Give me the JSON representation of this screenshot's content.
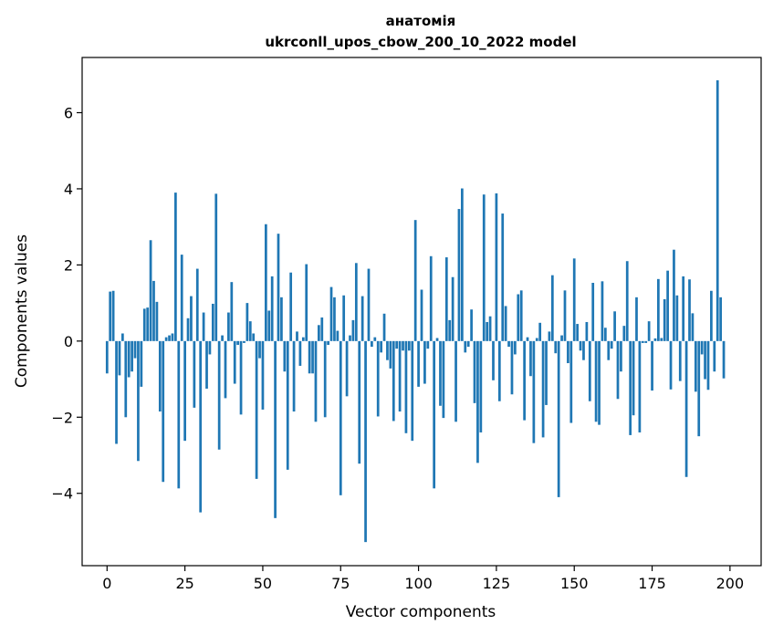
{
  "chart_data": {
    "type": "bar",
    "title_line1": "анатомія",
    "title_line2": "ukrconll_upos_cbow_200_10_2022 model",
    "xlabel": "Vector components",
    "ylabel": "Components values",
    "xlim": [
      -8,
      210
    ],
    "ylim": [
      -5.9,
      7.45
    ],
    "xticks": [
      0,
      25,
      50,
      75,
      100,
      125,
      150,
      175,
      200
    ],
    "yticks": [
      -4,
      -2,
      0,
      2,
      4,
      6
    ],
    "ytick_labels": [
      "−4",
      "−2",
      "0",
      "2",
      "4",
      "6"
    ],
    "bar_color": "#1f77b4",
    "grid": false,
    "values": [
      -0.85,
      1.3,
      1.32,
      -2.7,
      -0.9,
      0.2,
      -2.0,
      -0.95,
      -0.8,
      -0.45,
      -3.15,
      -1.2,
      0.85,
      0.88,
      2.65,
      1.58,
      1.03,
      -1.85,
      -3.7,
      0.1,
      0.15,
      0.2,
      3.9,
      -3.87,
      2.27,
      -2.62,
      0.6,
      1.18,
      -1.75,
      1.9,
      -4.5,
      0.75,
      -1.25,
      -0.35,
      0.98,
      3.87,
      -2.85,
      0.15,
      -1.5,
      0.75,
      1.55,
      -1.12,
      -0.1,
      -1.93,
      -0.05,
      1.0,
      0.52,
      0.2,
      -3.62,
      -0.45,
      -1.8,
      3.07,
      0.8,
      1.7,
      -4.65,
      2.82,
      1.15,
      -0.8,
      -3.38,
      1.8,
      -1.85,
      0.25,
      -0.65,
      0.1,
      2.02,
      -0.85,
      -0.85,
      -2.12,
      0.42,
      0.62,
      -2.0,
      -0.1,
      1.42,
      1.15,
      0.27,
      -4.05,
      1.2,
      -1.45,
      0.15,
      0.55,
      2.05,
      -3.22,
      1.18,
      -5.28,
      1.9,
      -0.15,
      0.1,
      -1.98,
      -0.3,
      0.72,
      -0.5,
      -0.72,
      -2.1,
      -0.2,
      -1.85,
      -0.25,
      -2.42,
      -0.25,
      -2.62,
      3.18,
      -1.2,
      1.35,
      -1.12,
      -0.2,
      2.23,
      -3.87,
      0.08,
      -1.7,
      -2.02,
      2.2,
      0.55,
      1.68,
      -2.12,
      3.47,
      4.01,
      -0.3,
      -0.15,
      0.83,
      -1.63,
      -3.2,
      -2.4,
      3.85,
      0.5,
      0.65,
      -1.03,
      3.88,
      -1.58,
      3.35,
      0.92,
      -0.15,
      -1.4,
      -0.35,
      1.23,
      1.33,
      -2.08,
      0.1,
      -0.92,
      -2.68,
      0.08,
      0.48,
      -2.53,
      -1.68,
      0.25,
      1.73,
      -0.32,
      -4.1,
      0.15,
      1.33,
      -0.58,
      -2.15,
      2.17,
      0.45,
      -0.25,
      -0.5,
      0.5,
      -1.58,
      1.53,
      -2.12,
      -2.2,
      1.57,
      0.35,
      -0.5,
      -0.2,
      0.78,
      -1.52,
      -0.8,
      0.4,
      2.1,
      -2.47,
      -1.95,
      1.15,
      -2.4,
      -0.05,
      -0.05,
      0.52,
      -1.3,
      0.07,
      1.63,
      0.08,
      1.1,
      1.85,
      -1.27,
      2.4,
      1.2,
      -1.05,
      1.7,
      -3.57,
      1.62,
      0.73,
      -1.33,
      -2.5,
      -0.35,
      -1.0,
      -1.28,
      1.32,
      -0.8,
      6.85,
      1.15,
      -0.98
    ]
  }
}
